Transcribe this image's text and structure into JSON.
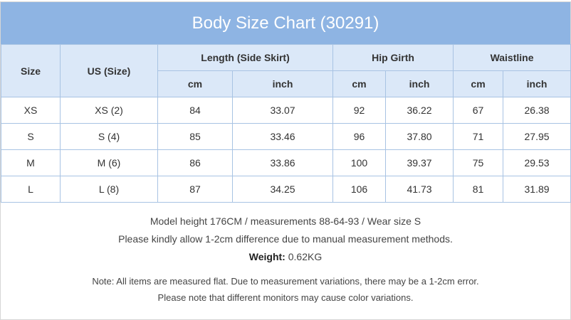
{
  "header": {
    "title": "Body Size Chart (30291)"
  },
  "table": {
    "columns": {
      "size": "Size",
      "us_size": "US (Size)",
      "groups": [
        "Length (Side Skirt)",
        "Hip Girth",
        "Waistline"
      ],
      "units": [
        "cm",
        "inch",
        "cm",
        "inch",
        "cm",
        "inch"
      ]
    },
    "rows": [
      [
        "XS",
        "XS (2)",
        "84",
        "33.07",
        "92",
        "36.22",
        "67",
        "26.38"
      ],
      [
        "S",
        "S (4)",
        "85",
        "33.46",
        "96",
        "37.80",
        "71",
        "27.95"
      ],
      [
        "M",
        "M (6)",
        "86",
        "33.86",
        "100",
        "39.37",
        "75",
        "29.53"
      ],
      [
        "L",
        "L (8)",
        "87",
        "34.25",
        "106",
        "41.73",
        "81",
        "31.89"
      ]
    ]
  },
  "notes": {
    "model": "Model height 176CM / measurements 88-64-93 / Wear size S",
    "allowance": "Please kindly allow 1-2cm difference due to manual measurement methods.",
    "weight_label": "Weight:",
    "weight_value": "0.62KG",
    "flat": "Note: All items are measured flat. Due to measurement variations, there may be a 1-2cm error.",
    "monitors": "Please note that different monitors may cause color variations."
  }
}
